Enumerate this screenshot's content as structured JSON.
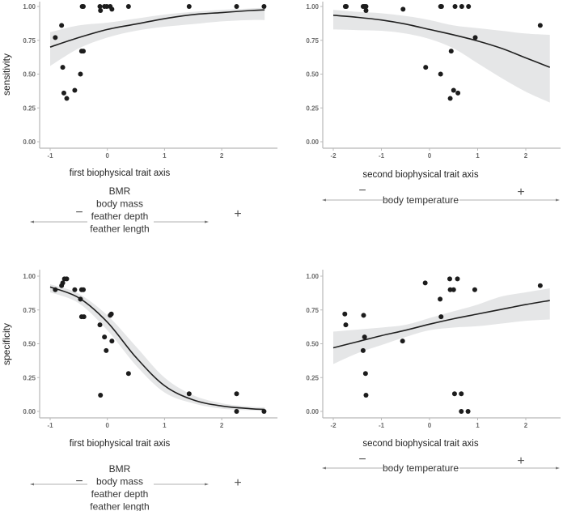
{
  "chart_data": [
    {
      "type": "scatter",
      "panel": "top-left",
      "xlabel": "first biophysical trait axis",
      "ylabel": "sensitivity",
      "xlim": [
        -1.1,
        2.85
      ],
      "ylim": [
        0,
        1
      ],
      "xticks": [
        "-1",
        "0",
        "1",
        "2"
      ],
      "xtick_values": [
        -1,
        0,
        1,
        2
      ],
      "yticks": [
        "0.00",
        "0.25",
        "0.50",
        "0.75",
        "1.00"
      ],
      "ytick_values": [
        0,
        0.25,
        0.5,
        0.75,
        1
      ],
      "points": [
        [
          -0.91,
          0.77
        ],
        [
          -0.8,
          0.86
        ],
        [
          -0.78,
          0.55
        ],
        [
          -0.76,
          0.36
        ],
        [
          -0.71,
          0.32
        ],
        [
          -0.57,
          0.38
        ],
        [
          -0.47,
          0.5
        ],
        [
          -0.45,
          0.67
        ],
        [
          -0.42,
          0.67
        ],
        [
          -0.44,
          1
        ],
        [
          -0.42,
          1
        ],
        [
          -0.13,
          1
        ],
        [
          -0.12,
          0.97
        ],
        [
          -0.05,
          1
        ],
        [
          -0.01,
          1
        ],
        [
          0.05,
          1
        ],
        [
          0.08,
          0.98
        ],
        [
          0.37,
          1
        ],
        [
          1.43,
          1
        ],
        [
          2.26,
          1
        ],
        [
          2.74,
          1
        ]
      ],
      "fit": {
        "x": [
          -1,
          -0.5,
          0,
          0.5,
          1,
          1.5,
          2,
          2.5,
          2.75
        ],
        "y": [
          0.7,
          0.77,
          0.83,
          0.87,
          0.91,
          0.94,
          0.955,
          0.97,
          0.975
        ],
        "lower": [
          0.56,
          0.69,
          0.77,
          0.82,
          0.85,
          0.87,
          0.89,
          0.9,
          0.9
        ],
        "upper": [
          0.81,
          0.86,
          0.88,
          0.91,
          0.94,
          0.96,
          0.975,
          0.985,
          0.99
        ]
      },
      "annotation": {
        "lines": [
          "BMR",
          "body mass",
          "feather depth",
          "feather length"
        ],
        "minus": "−",
        "plus": "+"
      }
    },
    {
      "type": "scatter",
      "panel": "top-right",
      "xlabel": "second biophysical trait axis",
      "ylabel": "",
      "xlim": [
        -2.2,
        2.7
      ],
      "ylim": [
        0,
        1
      ],
      "xticks": [
        "-2",
        "-1",
        "0",
        "1",
        "2"
      ],
      "xtick_values": [
        -2,
        -1,
        0,
        1,
        2
      ],
      "yticks": [
        "0.00",
        "0.25",
        "0.50",
        "0.75",
        "1.00"
      ],
      "ytick_values": [
        0,
        0.25,
        0.5,
        0.75,
        1
      ],
      "points": [
        [
          -1.75,
          1
        ],
        [
          -1.73,
          1
        ],
        [
          -1.38,
          1
        ],
        [
          -1.35,
          1
        ],
        [
          -1.32,
          1
        ],
        [
          -1.32,
          0.97
        ],
        [
          -0.55,
          0.98
        ],
        [
          -0.08,
          0.55
        ],
        [
          0.23,
          1
        ],
        [
          0.25,
          1
        ],
        [
          0.23,
          0.5
        ],
        [
          0.45,
          0.67
        ],
        [
          0.43,
          0.32
        ],
        [
          0.5,
          0.38
        ],
        [
          0.59,
          0.36
        ],
        [
          0.53,
          1
        ],
        [
          0.67,
          1
        ],
        [
          0.81,
          1
        ],
        [
          0.95,
          0.77
        ],
        [
          2.3,
          0.86
        ]
      ],
      "fit": {
        "x": [
          -2,
          -1.5,
          -1,
          -0.5,
          0,
          0.5,
          1,
          1.5,
          2,
          2.5
        ],
        "y": [
          0.935,
          0.92,
          0.9,
          0.87,
          0.83,
          0.79,
          0.745,
          0.69,
          0.62,
          0.55
        ],
        "lower": [
          0.83,
          0.825,
          0.82,
          0.8,
          0.76,
          0.69,
          0.58,
          0.47,
          0.37,
          0.29
        ],
        "upper": [
          0.975,
          0.96,
          0.95,
          0.93,
          0.9,
          0.86,
          0.84,
          0.82,
          0.8,
          0.79
        ]
      },
      "annotation": {
        "lines": [
          "body temperature"
        ],
        "minus": "−",
        "plus": "+"
      }
    },
    {
      "type": "scatter",
      "panel": "bottom-left",
      "xlabel": "first biophysical trait axis",
      "ylabel": "specificity",
      "xlim": [
        -1.1,
        2.85
      ],
      "ylim": [
        0,
        1
      ],
      "xticks": [
        "-1",
        "0",
        "1",
        "2"
      ],
      "xtick_values": [
        -1,
        0,
        1,
        2
      ],
      "yticks": [
        "0.00",
        "0.25",
        "0.50",
        "0.75",
        "1.00"
      ],
      "ytick_values": [
        0,
        0.25,
        0.5,
        0.75,
        1
      ],
      "points": [
        [
          -0.91,
          0.9
        ],
        [
          -0.8,
          0.93
        ],
        [
          -0.78,
          0.95
        ],
        [
          -0.75,
          0.98
        ],
        [
          -0.71,
          0.98
        ],
        [
          -0.57,
          0.9
        ],
        [
          -0.45,
          0.9
        ],
        [
          -0.42,
          0.9
        ],
        [
          -0.47,
          0.83
        ],
        [
          -0.45,
          0.7
        ],
        [
          -0.41,
          0.7
        ],
        [
          -0.13,
          0.64
        ],
        [
          -0.12,
          0.12
        ],
        [
          -0.05,
          0.55
        ],
        [
          -0.02,
          0.45
        ],
        [
          0.05,
          0.71
        ],
        [
          0.07,
          0.72
        ],
        [
          0.08,
          0.52
        ],
        [
          0.37,
          0.28
        ],
        [
          1.43,
          0.13
        ],
        [
          2.26,
          0.13
        ],
        [
          2.26,
          0
        ],
        [
          2.74,
          0
        ]
      ],
      "fit": {
        "x": [
          -1,
          -0.5,
          0,
          0.5,
          1,
          1.5,
          2,
          2.5,
          2.75
        ],
        "y": [
          0.92,
          0.84,
          0.66,
          0.4,
          0.19,
          0.085,
          0.04,
          0.02,
          0.015
        ],
        "lower": [
          0.88,
          0.8,
          0.6,
          0.34,
          0.14,
          0.06,
          0.02,
          0.008,
          0.005
        ],
        "upper": [
          0.94,
          0.87,
          0.71,
          0.48,
          0.25,
          0.12,
          0.06,
          0.035,
          0.03
        ]
      },
      "annotation": {
        "lines": [
          "BMR",
          "body mass",
          "feather depth",
          "feather length"
        ],
        "minus": "−",
        "plus": "+"
      }
    },
    {
      "type": "scatter",
      "panel": "bottom-right",
      "xlabel": "second biophysical trait axis",
      "ylabel": "",
      "xlim": [
        -2.2,
        2.7
      ],
      "ylim": [
        0,
        1
      ],
      "xticks": [
        "-2",
        "-1",
        "0",
        "1",
        "2"
      ],
      "xtick_values": [
        -2,
        -1,
        0,
        1,
        2
      ],
      "yticks": [
        "0.00",
        "0.25",
        "0.50",
        "0.75",
        "1.00"
      ],
      "ytick_values": [
        0,
        0.25,
        0.5,
        0.75,
        1
      ],
      "points": [
        [
          -1.76,
          0.72
        ],
        [
          -1.74,
          0.64
        ],
        [
          -1.37,
          0.71
        ],
        [
          -1.35,
          0.55
        ],
        [
          -1.38,
          0.45
        ],
        [
          -1.33,
          0.28
        ],
        [
          -1.32,
          0.12
        ],
        [
          -0.56,
          0.52
        ],
        [
          -0.09,
          0.95
        ],
        [
          0.22,
          0.83
        ],
        [
          0.24,
          0.7
        ],
        [
          0.42,
          0.98
        ],
        [
          0.58,
          0.98
        ],
        [
          0.43,
          0.9
        ],
        [
          0.5,
          0.9
        ],
        [
          0.94,
          0.9
        ],
        [
          0.52,
          0.13
        ],
        [
          0.66,
          0.13
        ],
        [
          0.66,
          0
        ],
        [
          0.8,
          0
        ],
        [
          2.3,
          0.93
        ]
      ],
      "fit": {
        "x": [
          -2,
          -1.5,
          -1,
          -0.5,
          0,
          0.5,
          1,
          1.5,
          2,
          2.5
        ],
        "y": [
          0.47,
          0.515,
          0.56,
          0.6,
          0.645,
          0.685,
          0.72,
          0.755,
          0.79,
          0.82
        ],
        "lower": [
          0.35,
          0.43,
          0.49,
          0.55,
          0.6,
          0.62,
          0.63,
          0.65,
          0.67,
          0.68
        ],
        "upper": [
          0.59,
          0.605,
          0.62,
          0.64,
          0.69,
          0.74,
          0.79,
          0.85,
          0.88,
          0.91
        ]
      },
      "annotation": {
        "lines": [
          "body temperature"
        ],
        "minus": "−",
        "plus": "+"
      }
    }
  ],
  "colors": {
    "points": "#1c1c1c",
    "curve": "#1f1f1f",
    "band": "#e5e6e7",
    "axis": "#b8b8b8"
  }
}
